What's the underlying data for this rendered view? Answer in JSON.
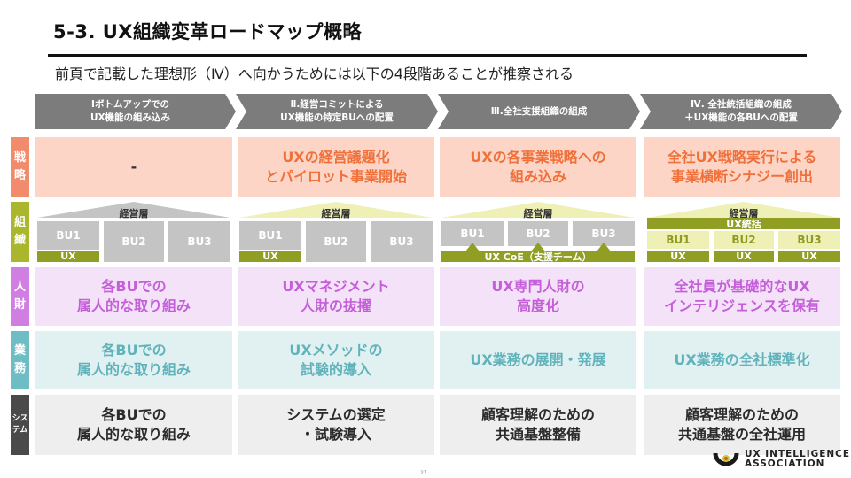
{
  "title": "5-3. UX組織変革ロードマップ概略",
  "subtitle": "前頁で記載した理想形（Ⅳ）へ向かうためには以下の4段階あることが推察される",
  "phases": [
    {
      "line1": "Ⅰボトムアップでの",
      "line2": "UX機能の組み込み"
    },
    {
      "line1": "Ⅱ.経営コミットによる",
      "line2": "UX機能の特定BUへの配置"
    },
    {
      "line1": "Ⅲ.全社支援組織の組成",
      "line2": ""
    },
    {
      "line1": "Ⅳ. 全社統括組織の組成",
      "line2": "＋UX機能の各BUへの配置"
    }
  ],
  "row_labels": {
    "strategy": [
      "戦",
      "略"
    ],
    "organization": [
      "組",
      "織"
    ],
    "talent": [
      "人",
      "財"
    ],
    "operations": [
      "業",
      "務"
    ],
    "system": [
      "シス",
      "テム"
    ]
  },
  "strategy": [
    "-",
    "UXの経営議題化\nとパイロット事業開始",
    "UXの各事業戦略への\n組み込み",
    "全社UX戦略実行による\n事業横断シナジー創出"
  ],
  "organization": {
    "roof_label": "経営層",
    "bu_labels": [
      "BU1",
      "BU2",
      "BU3"
    ],
    "ux_label": "UX",
    "coe_label": "UX CoE（支援チーム）",
    "ux_unified_label": "UX統括"
  },
  "talent": [
    "各BUでの\n属人的な取り組み",
    "UXマネジメント\n人財の抜擢",
    "UX専門人財の\n高度化",
    "全社員が基礎的なUX\nインテリジェンスを保有"
  ],
  "operations": [
    "各BUでの\n属人的な取り組み",
    "UXメソッドの\n試験的導入",
    "UX業務の展開・発展",
    "UX業務の全社標準化"
  ],
  "system": [
    "各BUでの\n属人的な取り組み",
    "システムの選定\n・試験導入",
    "顧客理解のための\n共通基盤整備",
    "顧客理解のための\n共通基盤の全社運用"
  ],
  "footer": {
    "page_number": "27",
    "logo_line1": "UX INTELLIGENCE",
    "logo_line2": "ASSOCIATION"
  },
  "colors": {
    "strategy_label": "#f28a6c",
    "organization_label": "#aab62c",
    "talent_label": "#d17ee2",
    "operations_label": "#6fbdc4",
    "system_label": "#4a4a4a",
    "phase_arrow": "#7c7c7c"
  }
}
